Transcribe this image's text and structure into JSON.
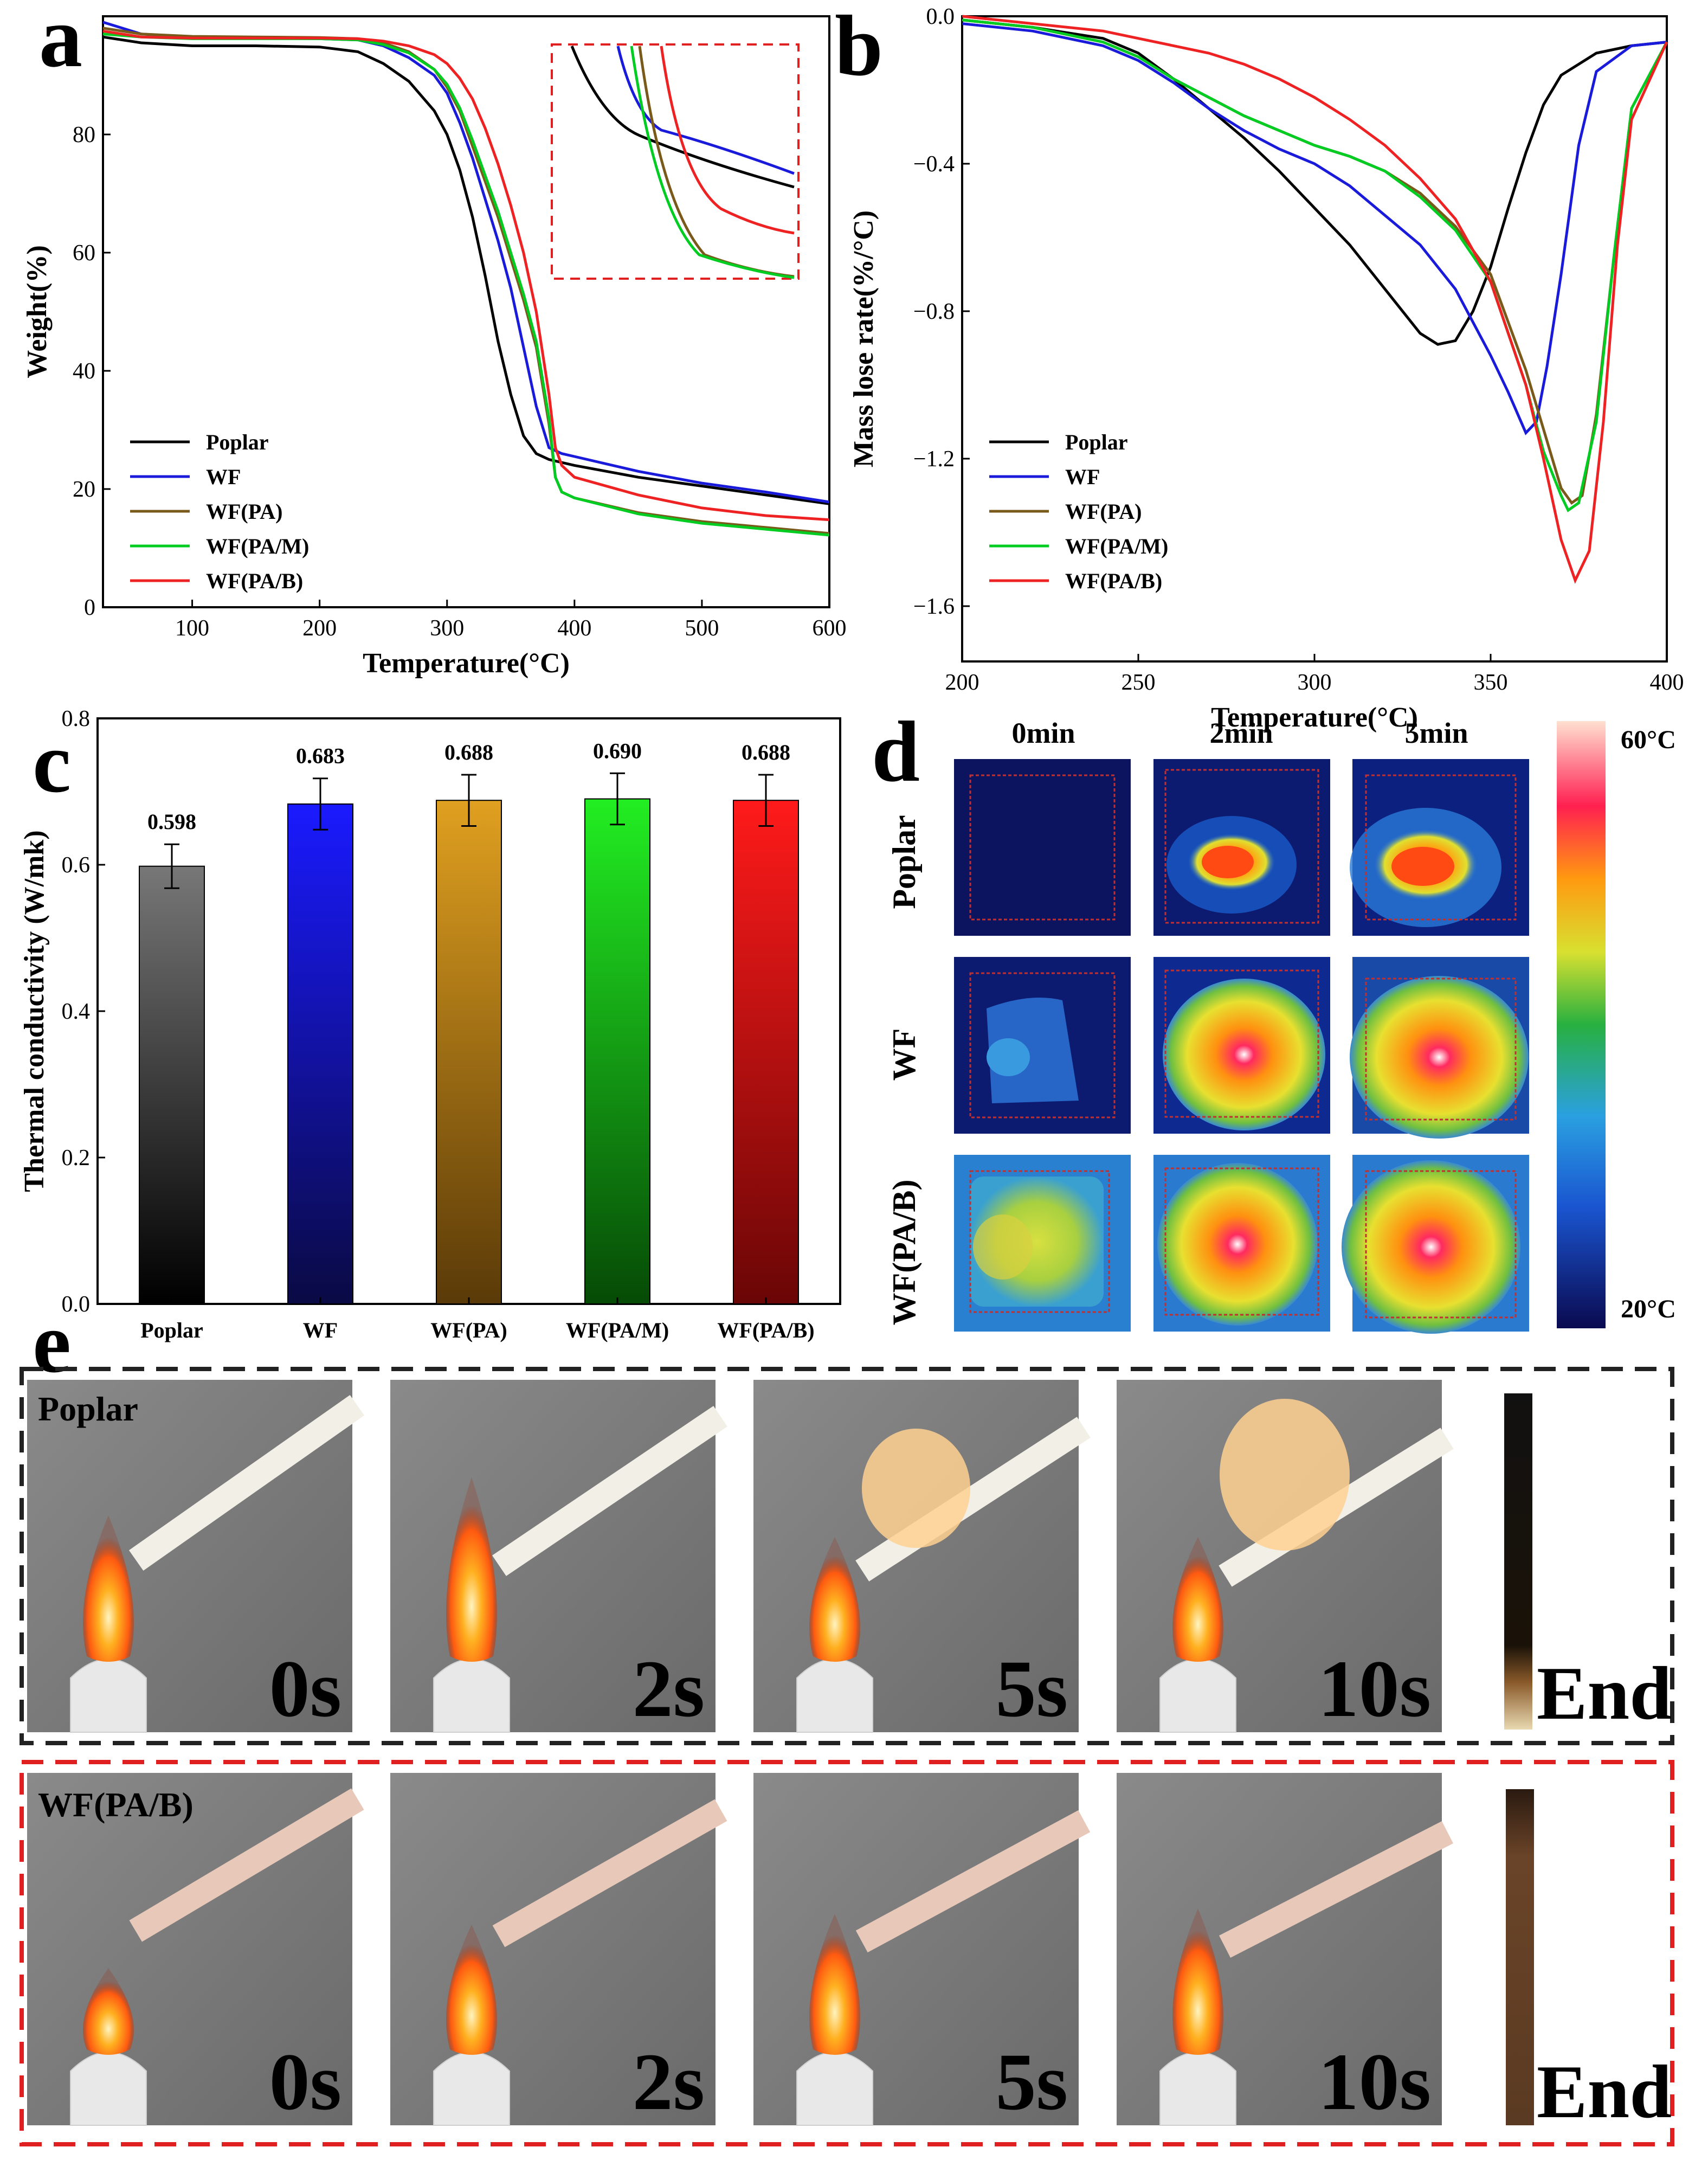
{
  "panels": {
    "a": "a",
    "b": "b",
    "c": "c",
    "d": "d",
    "e": "e"
  },
  "colors": {
    "Poplar": "#000000",
    "WF": "#1a1adb",
    "WF(PA)": "#7a5a1a",
    "WF(PA/M)": "#00cc22",
    "WF(PA/B)": "#ee2222"
  },
  "chart_data": [
    {
      "id": "a",
      "type": "line",
      "xlabel": "Temperature(°C)",
      "ylabel": "Weight(%)",
      "xlim": [
        30,
        600
      ],
      "ylim": [
        0,
        100
      ],
      "xticks": [
        100,
        200,
        300,
        400,
        500,
        600
      ],
      "yticks": [
        0,
        20,
        40,
        60,
        80
      ],
      "legend": [
        "Poplar",
        "WF",
        "WF(PA)",
        "WF(PA/M)",
        "WF(PA/B)"
      ],
      "legend_position": "bottom-left",
      "inset": "zoom of curves (dashed red box)",
      "series": [
        {
          "name": "Poplar",
          "x": [
            30,
            60,
            100,
            150,
            200,
            230,
            250,
            270,
            290,
            300,
            310,
            320,
            330,
            340,
            350,
            360,
            370,
            380,
            390,
            400,
            450,
            500,
            550,
            600
          ],
          "y": [
            96.5,
            95.5,
            95,
            95,
            94.8,
            94,
            92,
            89,
            84,
            80,
            74,
            66,
            56,
            45,
            36,
            29,
            26,
            25,
            24.5,
            24,
            22,
            20.5,
            19,
            17.5
          ]
        },
        {
          "name": "WF",
          "x": [
            30,
            60,
            100,
            150,
            200,
            230,
            250,
            270,
            290,
            300,
            310,
            320,
            330,
            340,
            350,
            360,
            370,
            380,
            390,
            400,
            450,
            500,
            550,
            600
          ],
          "y": [
            99,
            97,
            96.5,
            96.3,
            96.2,
            96,
            95,
            93,
            90,
            87,
            82,
            76,
            69,
            62,
            54,
            44,
            34,
            27,
            26,
            25.5,
            23,
            21,
            19.5,
            17.8
          ]
        },
        {
          "name": "WF(PA)",
          "x": [
            30,
            60,
            100,
            150,
            200,
            230,
            250,
            270,
            290,
            300,
            310,
            320,
            330,
            340,
            350,
            360,
            370,
            380,
            385,
            390,
            400,
            450,
            500,
            550,
            600
          ],
          "y": [
            98,
            97,
            96.6,
            96.5,
            96.4,
            96.2,
            95.5,
            94,
            91,
            88,
            84,
            78,
            72,
            66,
            59,
            52,
            44,
            31,
            22,
            19.5,
            18.5,
            16,
            14.5,
            13.5,
            12.5
          ]
        },
        {
          "name": "WF(PA/M)",
          "x": [
            30,
            60,
            100,
            150,
            200,
            230,
            250,
            270,
            290,
            300,
            310,
            320,
            330,
            340,
            350,
            360,
            370,
            380,
            385,
            390,
            400,
            450,
            500,
            550,
            600
          ],
          "y": [
            97,
            96.5,
            96.2,
            96.2,
            96.2,
            96,
            95.2,
            93.8,
            91,
            88.5,
            84.5,
            79,
            73,
            67,
            60,
            53,
            45,
            32,
            22,
            19.5,
            18.5,
            15.8,
            14.2,
            13.2,
            12.2
          ]
        },
        {
          "name": "WF(PA/B)",
          "x": [
            30,
            60,
            100,
            150,
            200,
            230,
            250,
            270,
            290,
            300,
            310,
            320,
            330,
            340,
            350,
            360,
            370,
            380,
            385,
            390,
            400,
            450,
            500,
            550,
            600
          ],
          "y": [
            97.5,
            96.5,
            96.3,
            96.3,
            96.3,
            96.2,
            95.8,
            95,
            93.5,
            92,
            89.5,
            86,
            81,
            75,
            68,
            60,
            50,
            36,
            27,
            24,
            22,
            19,
            16.8,
            15.5,
            14.8
          ]
        }
      ]
    },
    {
      "id": "b",
      "type": "line",
      "xlabel": "Temperature(°C)",
      "ylabel": "Mass lose rate(%/°C)",
      "xlim": [
        200,
        400
      ],
      "ylim": [
        -1.75,
        0
      ],
      "xticks": [
        200,
        250,
        300,
        350,
        400
      ],
      "yticks": [
        0.0,
        -0.4,
        -0.8,
        -1.2,
        -1.6
      ],
      "ytick_labels": [
        "0.0",
        "−0.4",
        "−0.8",
        "−1.2",
        "−1.6"
      ],
      "legend": [
        "Poplar",
        "WF",
        "WF(PA)",
        "WF(PA/M)",
        "WF(PA/B)"
      ],
      "legend_position": "bottom-left",
      "series": [
        {
          "name": "Poplar",
          "x": [
            200,
            220,
            240,
            250,
            260,
            270,
            280,
            290,
            300,
            310,
            320,
            330,
            335,
            340,
            345,
            350,
            355,
            360,
            365,
            370,
            380,
            390,
            400
          ],
          "y": [
            -0.01,
            -0.03,
            -0.06,
            -0.1,
            -0.17,
            -0.25,
            -0.33,
            -0.42,
            -0.52,
            -0.62,
            -0.74,
            -0.86,
            -0.89,
            -0.88,
            -0.8,
            -0.68,
            -0.52,
            -0.37,
            -0.24,
            -0.16,
            -0.1,
            -0.08,
            -0.07
          ]
        },
        {
          "name": "WF",
          "x": [
            200,
            220,
            240,
            250,
            260,
            270,
            280,
            290,
            300,
            310,
            320,
            330,
            340,
            350,
            355,
            360,
            363,
            366,
            370,
            375,
            380,
            390,
            400
          ],
          "y": [
            -0.02,
            -0.04,
            -0.08,
            -0.12,
            -0.18,
            -0.25,
            -0.31,
            -0.36,
            -0.4,
            -0.46,
            -0.54,
            -0.62,
            -0.74,
            -0.92,
            -1.02,
            -1.13,
            -1.1,
            -0.95,
            -0.7,
            -0.35,
            -0.15,
            -0.08,
            -0.07
          ]
        },
        {
          "name": "WF(PA)",
          "x": [
            200,
            220,
            240,
            250,
            260,
            270,
            280,
            290,
            300,
            310,
            320,
            330,
            340,
            350,
            360,
            365,
            370,
            373,
            376,
            380,
            385,
            390,
            400
          ],
          "y": [
            -0.01,
            -0.03,
            -0.07,
            -0.11,
            -0.17,
            -0.22,
            -0.27,
            -0.31,
            -0.35,
            -0.38,
            -0.42,
            -0.48,
            -0.57,
            -0.7,
            -0.96,
            -1.12,
            -1.28,
            -1.32,
            -1.3,
            -1.08,
            -0.65,
            -0.25,
            -0.07
          ]
        },
        {
          "name": "WF(PA/M)",
          "x": [
            200,
            220,
            240,
            250,
            260,
            270,
            280,
            290,
            300,
            310,
            320,
            330,
            340,
            350,
            360,
            365,
            370,
            372,
            375,
            380,
            385,
            390,
            400
          ],
          "y": [
            -0.01,
            -0.03,
            -0.07,
            -0.11,
            -0.17,
            -0.22,
            -0.27,
            -0.31,
            -0.35,
            -0.38,
            -0.42,
            -0.49,
            -0.58,
            -0.72,
            -1.0,
            -1.18,
            -1.3,
            -1.34,
            -1.32,
            -1.1,
            -0.65,
            -0.25,
            -0.07
          ]
        },
        {
          "name": "WF(PA/B)",
          "x": [
            200,
            220,
            240,
            250,
            260,
            270,
            280,
            290,
            300,
            310,
            320,
            330,
            340,
            350,
            360,
            365,
            370,
            374,
            378,
            382,
            386,
            390,
            400
          ],
          "y": [
            0.0,
            -0.02,
            -0.04,
            -0.06,
            -0.08,
            -0.1,
            -0.13,
            -0.17,
            -0.22,
            -0.28,
            -0.35,
            -0.44,
            -0.55,
            -0.72,
            -1.0,
            -1.2,
            -1.42,
            -1.53,
            -1.45,
            -1.1,
            -0.62,
            -0.28,
            -0.07
          ]
        }
      ]
    },
    {
      "id": "c",
      "type": "bar",
      "xlabel": "",
      "ylabel": "Thermal conductivity (W/mk)",
      "ylim": [
        0,
        0.8
      ],
      "yticks": [
        0.0,
        0.2,
        0.4,
        0.6,
        0.8
      ],
      "ytick_labels": [
        "0.0",
        "0.2",
        "0.4",
        "0.6",
        "0.8"
      ],
      "categories": [
        "Poplar",
        "WF",
        "WF(PA)",
        "WF(PA/M)",
        "WF(PA/B)"
      ],
      "values": [
        0.598,
        0.683,
        0.688,
        0.69,
        0.688
      ],
      "value_labels": [
        "0.598",
        "0.683",
        "0.688",
        "0.690",
        "0.688"
      ],
      "errors": [
        0.03,
        0.035,
        0.035,
        0.035,
        0.035
      ]
    }
  ],
  "thermal": {
    "columns": [
      "0min",
      "2min",
      "5min"
    ],
    "rows": [
      "Poplar",
      "WF",
      "WF(PA/B)"
    ],
    "scale_max": "60°C",
    "scale_min": "20°C"
  },
  "burn": {
    "rows": [
      "Poplar",
      "WF(PA/B)"
    ],
    "times": [
      "0s",
      "2s",
      "5s",
      "10s"
    ],
    "end": "End"
  }
}
